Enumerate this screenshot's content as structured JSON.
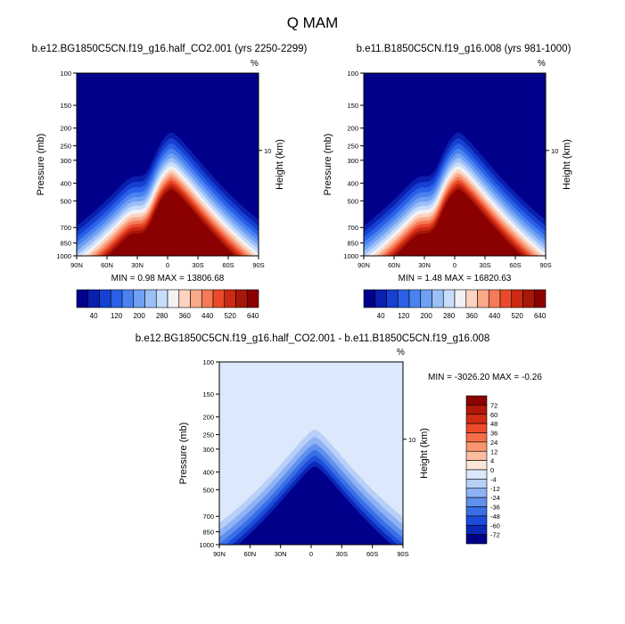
{
  "title": "Q MAM",
  "chart_data": [
    {
      "type": "contour",
      "title": "b.e12.BG1850C5CN.f19_g16.half_CO2.001 (yrs 2250-2299)",
      "units": "%",
      "ylabel": "Pressure (mb)",
      "y2label": "Height (km)",
      "y2ticks": [
        "10"
      ],
      "xticks": [
        "90N",
        "60N",
        "30N",
        "0",
        "30S",
        "60S",
        "90S"
      ],
      "yticks": [
        "100",
        "150",
        "200",
        "250",
        "300",
        "400",
        "500",
        "700",
        "850",
        "1000"
      ],
      "stats_label": "MIN =   0.98  MAX = 13806.68",
      "min": 0.98,
      "max": 13806.68,
      "colorbar_labels": [
        "40",
        "120",
        "200",
        "280",
        "360",
        "440",
        "520",
        "640"
      ],
      "colors": [
        "#00008b",
        "#0a1fb0",
        "#1540d0",
        "#2a60e8",
        "#4a82f0",
        "#6fa0f5",
        "#9cbff8",
        "#c8dcfc",
        "#f2f2f4",
        "#fcd2c0",
        "#f9a888",
        "#f47a58",
        "#ea4a2a",
        "#cc2a12",
        "#a8180a",
        "#8b0000"
      ]
    },
    {
      "type": "contour",
      "title": "b.e11.B1850C5CN.f19_g16.008 (yrs 981-1000)",
      "units": "%",
      "ylabel": "Pressure (mb)",
      "y2label": "Height (km)",
      "y2ticks": [
        "10"
      ],
      "xticks": [
        "90N",
        "60N",
        "30N",
        "0",
        "30S",
        "60S",
        "90S"
      ],
      "yticks": [
        "100",
        "150",
        "200",
        "250",
        "300",
        "400",
        "500",
        "700",
        "850",
        "1000"
      ],
      "stats_label": "MIN =   1.48  MAX = 16820.63",
      "min": 1.48,
      "max": 16820.63,
      "colorbar_labels": [
        "40",
        "120",
        "200",
        "280",
        "360",
        "440",
        "520",
        "640"
      ],
      "colors": [
        "#00008b",
        "#0a1fb0",
        "#1540d0",
        "#2a60e8",
        "#4a82f0",
        "#6fa0f5",
        "#9cbff8",
        "#c8dcfc",
        "#f2f2f4",
        "#fcd2c0",
        "#f9a888",
        "#f47a58",
        "#ea4a2a",
        "#cc2a12",
        "#a8180a",
        "#8b0000"
      ]
    },
    {
      "type": "contour",
      "title": "b.e12.BG1850C5CN.f19_g16.half_CO2.001 - b.e11.B1850C5CN.f19_g16.008",
      "units": "%",
      "ylabel": "Pressure (mb)",
      "y2label": "Height (km)",
      "y2ticks": [
        "10"
      ],
      "xticks": [
        "90N",
        "60N",
        "30N",
        "0",
        "30S",
        "60S",
        "90S"
      ],
      "yticks": [
        "100",
        "150",
        "200",
        "250",
        "300",
        "400",
        "500",
        "700",
        "850",
        "1000"
      ],
      "stats_label": "MIN = -3026.20  MAX =  -0.26",
      "min": -3026.2,
      "max": -0.26,
      "colorbar_labels": [
        "72",
        "60",
        "48",
        "36",
        "24",
        "12",
        "4",
        "0",
        "-4",
        "-12",
        "-24",
        "-36",
        "-48",
        "-60",
        "-72"
      ],
      "colors": [
        "#8b0000",
        "#b01808",
        "#d02c14",
        "#ee4a2a",
        "#f66e48",
        "#f99670",
        "#fbbda0",
        "#fde6d8",
        "#dce8fb",
        "#b8cff8",
        "#8eb2f4",
        "#6090ee",
        "#3a6ee6",
        "#1c4cd8",
        "#0c28b8",
        "#00008b"
      ]
    }
  ]
}
